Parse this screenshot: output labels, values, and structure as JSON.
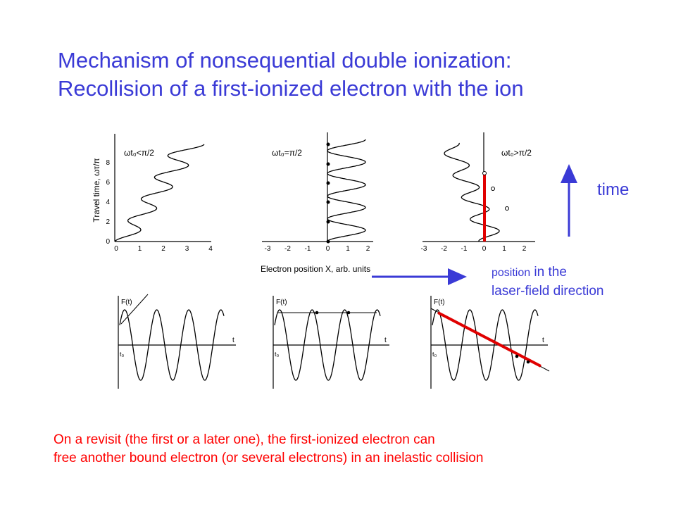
{
  "title": {
    "line1": "Mechanism of nonsequential double ionization:",
    "line2": "Recollision of a first-ionized electron with the ion"
  },
  "top_panels": {
    "y_axis_label": "Travel time, ωτ/π",
    "y_ticks": [
      "0",
      "2",
      "4",
      "6",
      "8"
    ],
    "x_axis_label": "Electron position X, arb. units",
    "panel1": {
      "label": "ωt₀<π/2",
      "x_ticks": [
        "0",
        "1",
        "2",
        "3",
        "4"
      ]
    },
    "panel2": {
      "label": "ωt₀=π/2",
      "x_ticks": [
        "-3",
        "-2",
        "-1",
        "0",
        "1",
        "2"
      ]
    },
    "panel3": {
      "label": "ωt₀>π/2",
      "x_ticks": [
        "-3",
        "-2",
        "-1",
        "0",
        "1",
        "2"
      ]
    }
  },
  "bottom_panels": {
    "y_label": "F(t)",
    "x_label": "t",
    "t0_label": "t₀"
  },
  "arrows": {
    "time_label": "time",
    "position_label_small": "position",
    "position_label_rest": " in the",
    "position_label_line2": "laser-field direction"
  },
  "note": {
    "line1": "On a revisit (the first or a later one), the first-ionized electron can",
    "line2": "free another bound electron (or several electrons) in an inelastic collision"
  },
  "colors": {
    "title": "#3a3ad6",
    "note": "#ff0000",
    "highlight": "#e00000",
    "arrow": "#3a3ad6"
  }
}
